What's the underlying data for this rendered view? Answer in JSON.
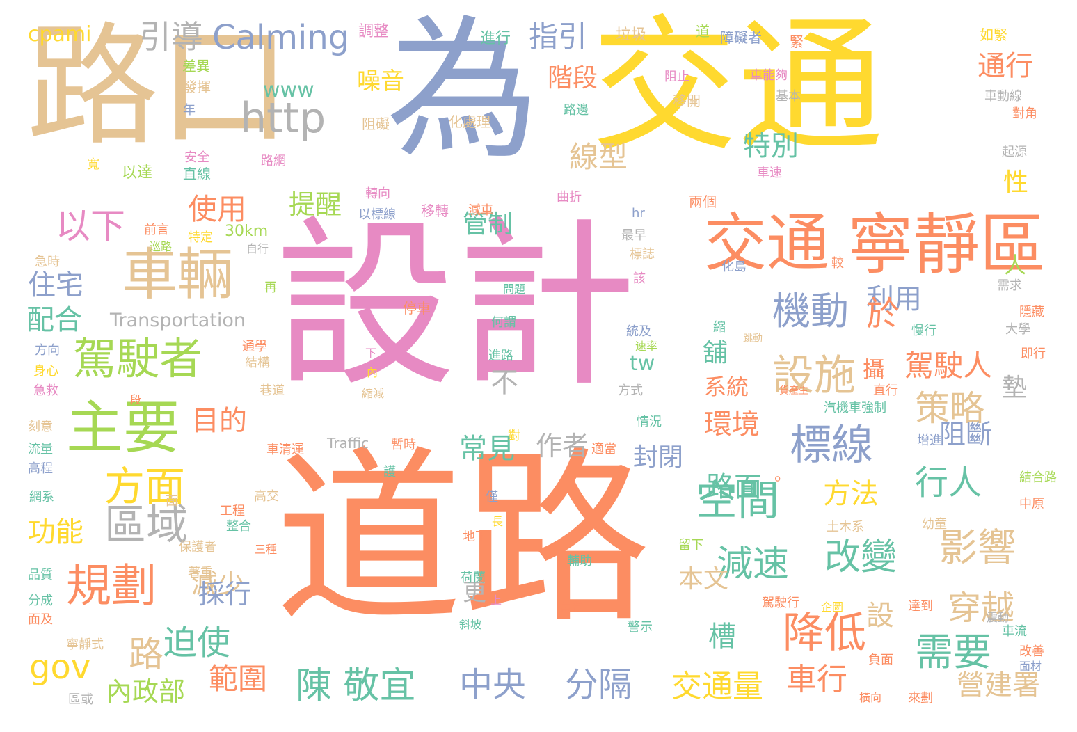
{
  "palette": {
    "orange": "#fc8d62",
    "yellow": "#ffd92f",
    "tan": "#e5c494",
    "blue": "#8da0cb",
    "pink": "#e78ac3",
    "green": "#a6d854",
    "teal": "#66c2a5",
    "gray": "#b3b3b3"
  },
  "words": [
    {
      "text": "設計",
      "color": "pink"
    },
    {
      "text": "道路",
      "color": "orange"
    },
    {
      "text": "交通",
      "color": "yellow"
    },
    {
      "text": "為",
      "color": "blue"
    },
    {
      "text": "路口",
      "color": "tan"
    },
    {
      "text": "寧靜區",
      "color": "orange"
    },
    {
      "text": "交通",
      "color": "orange"
    },
    {
      "text": "車輛",
      "color": "tan"
    },
    {
      "text": "主要",
      "color": "green"
    },
    {
      "text": "駕駛者",
      "color": "green"
    },
    {
      "text": "規劃",
      "color": "orange"
    },
    {
      "text": "區域",
      "color": "gray"
    },
    {
      "text": "方面",
      "color": "yellow"
    },
    {
      "text": "以下",
      "color": "pink"
    },
    {
      "text": "http",
      "color": "gray"
    },
    {
      "text": "Calming",
      "color": "blue"
    },
    {
      "text": "引導",
      "color": "gray"
    },
    {
      "text": "cpami",
      "color": "yellow"
    },
    {
      "text": "gov",
      "color": "yellow"
    },
    {
      "text": "www",
      "color": "teal"
    },
    {
      "text": "Transportation",
      "color": "gray"
    },
    {
      "text": "Traffic",
      "color": "gray"
    },
    {
      "text": "指引",
      "color": "blue"
    },
    {
      "text": "標線",
      "color": "blue"
    },
    {
      "text": "設施",
      "color": "tan"
    },
    {
      "text": "機動",
      "color": "blue"
    },
    {
      "text": "空間",
      "color": "teal"
    },
    {
      "text": "減速",
      "color": "teal"
    },
    {
      "text": "改變",
      "color": "teal"
    },
    {
      "text": "降低",
      "color": "orange"
    },
    {
      "text": "需要",
      "color": "teal"
    },
    {
      "text": "影響",
      "color": "tan"
    },
    {
      "text": "穿越",
      "color": "tan"
    },
    {
      "text": "策略",
      "color": "tan"
    },
    {
      "text": "行人",
      "color": "teal"
    },
    {
      "text": "駕駛人",
      "color": "orange"
    },
    {
      "text": "陳 敬宜",
      "color": "teal"
    },
    {
      "text": "中央",
      "color": "blue"
    },
    {
      "text": "分隔",
      "color": "blue"
    },
    {
      "text": "交通量",
      "color": "yellow"
    },
    {
      "text": "車行",
      "color": "orange"
    },
    {
      "text": "營建署",
      "color": "tan"
    },
    {
      "text": "範圍",
      "color": "orange"
    },
    {
      "text": "內政部",
      "color": "green"
    },
    {
      "text": "迫使",
      "color": "teal"
    },
    {
      "text": "路",
      "color": "tan"
    },
    {
      "text": "功能",
      "color": "yellow"
    },
    {
      "text": "減少",
      "color": "tan"
    },
    {
      "text": "目的",
      "color": "orange"
    },
    {
      "text": "使用",
      "color": "orange"
    },
    {
      "text": "住宅",
      "color": "blue"
    },
    {
      "text": "配合",
      "color": "teal"
    },
    {
      "text": "提醒",
      "color": "green"
    },
    {
      "text": "管制",
      "color": "teal"
    },
    {
      "text": "特別",
      "color": "teal"
    },
    {
      "text": "線型",
      "color": "tan"
    },
    {
      "text": "階段",
      "color": "orange"
    },
    {
      "text": "噪音",
      "color": "yellow"
    },
    {
      "text": "通行",
      "color": "orange"
    },
    {
      "text": "利用",
      "color": "blue"
    },
    {
      "text": "於",
      "color": "orange"
    },
    {
      "text": "環境",
      "color": "orange"
    },
    {
      "text": "路面",
      "color": "teal"
    },
    {
      "text": "系統",
      "color": "orange"
    },
    {
      "text": "封閉",
      "color": "blue"
    },
    {
      "text": "作者",
      "color": "gray"
    },
    {
      "text": "常見",
      "color": "teal"
    },
    {
      "text": "採行",
      "color": "blue"
    },
    {
      "text": "方法",
      "color": "yellow"
    },
    {
      "text": "阻斷",
      "color": "blue"
    },
    {
      "text": "本文",
      "color": "tan"
    },
    {
      "text": "槽",
      "color": "teal"
    },
    {
      "text": "設",
      "color": "tan"
    },
    {
      "text": "墊",
      "color": "gray"
    },
    {
      "text": "不",
      "color": "gray"
    },
    {
      "text": "tw",
      "color": "teal"
    },
    {
      "text": "更",
      "color": "gray"
    },
    {
      "text": "人",
      "color": "green"
    },
    {
      "text": "性",
      "color": "yellow"
    },
    {
      "text": "舖",
      "color": "teal"
    },
    {
      "text": "攝",
      "color": "orange"
    },
    {
      "text": "。",
      "color": "orange"
    },
    {
      "text": "30km",
      "color": "green"
    },
    {
      "text": "調整",
      "color": "pink"
    },
    {
      "text": "進行",
      "color": "teal"
    },
    {
      "text": "垃圾",
      "color": "tan"
    },
    {
      "text": "道",
      "color": "green"
    },
    {
      "text": "障礙者",
      "color": "blue"
    },
    {
      "text": "如緊",
      "color": "yellow"
    },
    {
      "text": "緊",
      "color": "orange"
    },
    {
      "text": "差異",
      "color": "green"
    },
    {
      "text": "發揮",
      "color": "tan"
    },
    {
      "text": "年",
      "color": "blue"
    },
    {
      "text": "阻止",
      "color": "pink"
    },
    {
      "text": "移開",
      "color": "tan"
    },
    {
      "text": "車能夠",
      "color": "pink"
    },
    {
      "text": "基本",
      "color": "gray"
    },
    {
      "text": "車動線",
      "color": "gray"
    },
    {
      "text": "對角",
      "color": "orange"
    },
    {
      "text": "化處理",
      "color": "tan"
    },
    {
      "text": "路邊",
      "color": "teal"
    },
    {
      "text": "阻礙",
      "color": "tan"
    },
    {
      "text": "安全",
      "color": "pink"
    },
    {
      "text": "路網",
      "color": "pink"
    },
    {
      "text": "以達",
      "color": "green"
    },
    {
      "text": "直線",
      "color": "teal"
    },
    {
      "text": "寬",
      "color": "yellow"
    },
    {
      "text": "車速",
      "color": "pink"
    },
    {
      "text": "起源",
      "color": "gray"
    },
    {
      "text": "轉向",
      "color": "pink"
    },
    {
      "text": "以標線",
      "color": "blue"
    },
    {
      "text": "移轉",
      "color": "pink"
    },
    {
      "text": "減車",
      "color": "orange"
    },
    {
      "text": "曲折",
      "color": "pink"
    },
    {
      "text": "hr",
      "color": "blue"
    },
    {
      "text": "兩個",
      "color": "orange"
    },
    {
      "text": "最早",
      "color": "gray"
    },
    {
      "text": "標誌",
      "color": "tan"
    },
    {
      "text": "前言",
      "color": "orange"
    },
    {
      "text": "巡路",
      "color": "green"
    },
    {
      "text": "特定",
      "color": "yellow"
    },
    {
      "text": "自行",
      "color": "gray"
    },
    {
      "text": "急時",
      "color": "tan"
    },
    {
      "text": "再",
      "color": "green"
    },
    {
      "text": "該",
      "color": "pink"
    },
    {
      "text": "較",
      "color": "orange"
    },
    {
      "text": "化島",
      "color": "blue"
    },
    {
      "text": "需求",
      "color": "gray"
    },
    {
      "text": "問題",
      "color": "teal"
    },
    {
      "text": "停車",
      "color": "orange"
    },
    {
      "text": "何謂",
      "color": "teal"
    },
    {
      "text": "隱藏",
      "color": "orange"
    },
    {
      "text": "慢行",
      "color": "teal"
    },
    {
      "text": "統及",
      "color": "blue"
    },
    {
      "text": "速率",
      "color": "green"
    },
    {
      "text": "縮",
      "color": "teal"
    },
    {
      "text": "跳動",
      "color": "tan"
    },
    {
      "text": "大學",
      "color": "gray"
    },
    {
      "text": "即行",
      "color": "orange"
    },
    {
      "text": "方向",
      "color": "blue"
    },
    {
      "text": "身心",
      "color": "yellow"
    },
    {
      "text": "急救",
      "color": "pink"
    },
    {
      "text": "通學",
      "color": "orange"
    },
    {
      "text": "結構",
      "color": "tan"
    },
    {
      "text": "下",
      "color": "pink"
    },
    {
      "text": "內",
      "color": "yellow"
    },
    {
      "text": "縮減",
      "color": "tan"
    },
    {
      "text": "進路",
      "color": "teal"
    },
    {
      "text": "巷道",
      "color": "tan"
    },
    {
      "text": "段",
      "color": "orange"
    },
    {
      "text": "方式",
      "color": "gray"
    },
    {
      "text": "直行",
      "color": "orange"
    },
    {
      "text": "貨產生",
      "color": "orange"
    },
    {
      "text": "汽機車強制",
      "color": "teal"
    },
    {
      "text": "情況",
      "color": "teal"
    },
    {
      "text": "刻意",
      "color": "tan"
    },
    {
      "text": "流量",
      "color": "teal"
    },
    {
      "text": "高程",
      "color": "blue"
    },
    {
      "text": "車清運",
      "color": "orange"
    },
    {
      "text": "暫時",
      "color": "orange"
    },
    {
      "text": "對",
      "color": "yellow"
    },
    {
      "text": "適當",
      "color": "orange"
    },
    {
      "text": "增進",
      "color": "blue"
    },
    {
      "text": "網系",
      "color": "teal"
    },
    {
      "text": "面",
      "color": "tan"
    },
    {
      "text": "護",
      "color": "teal"
    },
    {
      "text": "高交",
      "color": "tan"
    },
    {
      "text": "僅",
      "color": "blue"
    },
    {
      "text": "工程",
      "color": "orange"
    },
    {
      "text": "整合",
      "color": "teal"
    },
    {
      "text": "結合路",
      "color": "green"
    },
    {
      "text": "中原",
      "color": "orange"
    },
    {
      "text": "土木系",
      "color": "tan"
    },
    {
      "text": "幼童",
      "color": "tan"
    },
    {
      "text": "長",
      "color": "yellow"
    },
    {
      "text": "保護者",
      "color": "tan"
    },
    {
      "text": "三種",
      "color": "orange"
    },
    {
      "text": "地下",
      "color": "orange"
    },
    {
      "text": "留下",
      "color": "green"
    },
    {
      "text": "品質",
      "color": "teal"
    },
    {
      "text": "著重",
      "color": "tan"
    },
    {
      "text": "輔助",
      "color": "teal"
    },
    {
      "text": "荷蘭",
      "color": "teal"
    },
    {
      "text": "分成",
      "color": "teal"
    },
    {
      "text": "面及",
      "color": "orange"
    },
    {
      "text": "上",
      "color": "pink"
    },
    {
      "text": "常有",
      "color": "orange"
    },
    {
      "text": "駕駛行",
      "color": "orange"
    },
    {
      "text": "企圖",
      "color": "yellow"
    },
    {
      "text": "達到",
      "color": "orange"
    },
    {
      "text": "震動",
      "color": "gray"
    },
    {
      "text": "寧靜式",
      "color": "tan"
    },
    {
      "text": "斜坡",
      "color": "teal"
    },
    {
      "text": "警示",
      "color": "teal"
    },
    {
      "text": "車流",
      "color": "teal"
    },
    {
      "text": "負面",
      "color": "orange"
    },
    {
      "text": "改善",
      "color": "orange"
    },
    {
      "text": "面材",
      "color": "blue"
    },
    {
      "text": "區或",
      "color": "gray"
    },
    {
      "text": "橫向",
      "color": "orange"
    },
    {
      "text": "來劃",
      "color": "orange"
    }
  ]
}
